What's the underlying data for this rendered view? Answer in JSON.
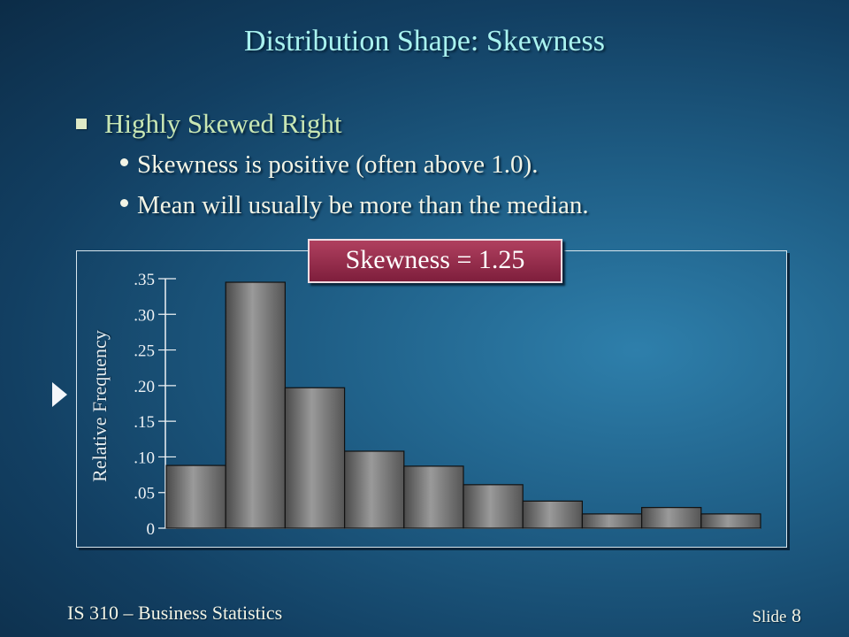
{
  "slide": {
    "title": "Distribution Shape:  Skewness",
    "bullet_main": "Highly Skewed Right",
    "sub_bullets": [
      "Skewness is positive (often above 1.0).",
      "Mean will usually be more than the median."
    ],
    "skewness_label": "Skewness =  1.25",
    "footer_left": "IS 310 – Business Statistics",
    "footer_slide_label": "Slide",
    "footer_slide_number": "8"
  },
  "chart_data": {
    "type": "bar",
    "ylabel": "Relative Frequency",
    "xlabel": "",
    "ylim": [
      0,
      0.35
    ],
    "yticks": [
      {
        "value": 0,
        "label": "0"
      },
      {
        "value": 0.05,
        "label": ".05"
      },
      {
        "value": 0.1,
        "label": ".10"
      },
      {
        "value": 0.15,
        "label": ".15"
      },
      {
        "value": 0.2,
        "label": ".20"
      },
      {
        "value": 0.25,
        "label": ".25"
      },
      {
        "value": 0.3,
        "label": ".30"
      },
      {
        "value": 0.35,
        "label": ".35"
      }
    ],
    "values": [
      0.088,
      0.345,
      0.197,
      0.108,
      0.087,
      0.061,
      0.038,
      0.02,
      0.029,
      0.02
    ],
    "bar_color": "#7a7a7a"
  }
}
